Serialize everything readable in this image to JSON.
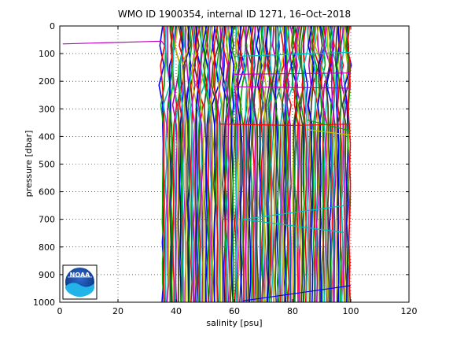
{
  "chart_data": {
    "type": "line",
    "title": "WMO ID 1900354, internal ID 1271, 16–Oct–2018",
    "xlabel": "salinity [psu]",
    "ylabel": "pressure [dbar]",
    "xlim": [
      0,
      120
    ],
    "ylim": [
      0,
      1000
    ],
    "y_reversed": true,
    "grid": true,
    "grid_style": "dotted",
    "x_ticks": [
      "0",
      "20",
      "40",
      "60",
      "80",
      "100",
      "120"
    ],
    "y_ticks": [
      "0",
      "100",
      "200",
      "300",
      "400",
      "500",
      "600",
      "700",
      "800",
      "900",
      "1000"
    ],
    "profile_band": {
      "salinity_min": 35,
      "salinity_max": 100,
      "pressure_min": 0,
      "pressure_max": 1000
    },
    "colors": [
      "#0000ff",
      "#00aa00",
      "#ff0000",
      "#00bfbf",
      "#bf00bf",
      "#bfbf00",
      "#404040"
    ],
    "series": [
      {
        "color": "#bf00bf",
        "x": [
          1,
          35,
          36
        ],
        "y": [
          65,
          55,
          70
        ]
      },
      {
        "color": "#ff0000",
        "x": [
          55,
          80,
          100
        ],
        "y": [
          355,
          360,
          355
        ]
      },
      {
        "color": "#00bfbf",
        "x": [
          60,
          100
        ],
        "y": [
          110,
          95
        ]
      },
      {
        "color": "#bf00bf",
        "x": [
          60,
          100
        ],
        "y": [
          175,
          170
        ]
      },
      {
        "color": "#00bfbf",
        "x": [
          63,
          98
        ],
        "y": [
          700,
          650
        ]
      },
      {
        "color": "#00bfbf",
        "x": [
          63,
          98
        ],
        "y": [
          700,
          748
        ]
      },
      {
        "color": "#0000ff",
        "x": [
          63,
          100
        ],
        "y": [
          995,
          940
        ]
      },
      {
        "color": "#bf00bf",
        "x": [
          60,
          100
        ],
        "y": [
          220,
          225
        ]
      },
      {
        "color": "#00aa00",
        "x": [
          85,
          100
        ],
        "y": [
          340,
          380
        ]
      },
      {
        "color": "#bfbf00",
        "x": [
          85,
          100
        ],
        "y": [
          375,
          395
        ]
      }
    ]
  },
  "logo": {
    "name": "NOAA",
    "text": "NOAA"
  }
}
